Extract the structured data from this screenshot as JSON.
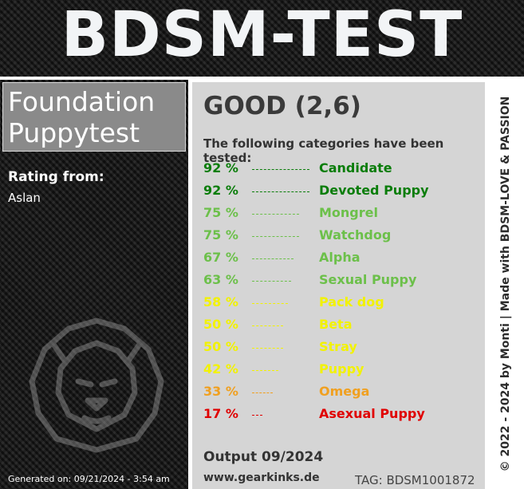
{
  "header": {
    "title": "BDSM-TEST"
  },
  "test": {
    "name_line1": "Foundation",
    "name_line2": "Puppytest"
  },
  "rating": {
    "label": "Rating from:",
    "name": "Aslan"
  },
  "generated": "Generated on: 09/21/2024 - 3:54 am",
  "result": {
    "title": "GOOD (2,6)",
    "intro": "The following categories have been tested:"
  },
  "categories": [
    {
      "percent": "92 %",
      "value": 92,
      "name": "Candidate",
      "color": "#0a7d0a"
    },
    {
      "percent": "92 %",
      "value": 92,
      "name": "Devoted Puppy",
      "color": "#0a7d0a"
    },
    {
      "percent": "75 %",
      "value": 75,
      "name": "Mongrel",
      "color": "#6cc04a"
    },
    {
      "percent": "75 %",
      "value": 75,
      "name": "Watchdog",
      "color": "#6cc04a"
    },
    {
      "percent": "67 %",
      "value": 67,
      "name": "Alpha",
      "color": "#6cc04a"
    },
    {
      "percent": "63 %",
      "value": 63,
      "name": "Sexual Puppy",
      "color": "#6cc04a"
    },
    {
      "percent": "58 %",
      "value": 58,
      "name": "Pack dog",
      "color": "#f2f200"
    },
    {
      "percent": "50 %",
      "value": 50,
      "name": "Beta",
      "color": "#f2f200"
    },
    {
      "percent": "50 %",
      "value": 50,
      "name": "Stray",
      "color": "#f2f200"
    },
    {
      "percent": "42 %",
      "value": 42,
      "name": "Puppy",
      "color": "#f2f200"
    },
    {
      "percent": "33 %",
      "value": 33,
      "name": "Omega",
      "color": "#f0a020"
    },
    {
      "percent": "17 %",
      "value": 17,
      "name": "Asexual Puppy",
      "color": "#e00000"
    }
  ],
  "footer": {
    "output": "Output 09/2024",
    "website": "www.gearkinks.de",
    "tag": "TAG: BDSM1001872",
    "credit": "© 2022 - 2024 by Monti | Made with BDSM-LOVE & PASSION"
  },
  "icons": {
    "watermark": "lion-head-icon"
  }
}
